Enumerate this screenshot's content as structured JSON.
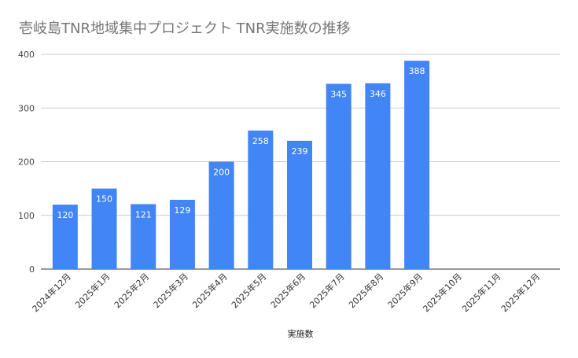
{
  "chart_data": {
    "type": "bar",
    "title": "壱岐島TNR地域集中プロジェクト  TNR実施数の推移",
    "xlabel": "実施数",
    "ylabel": "",
    "categories": [
      "2024年12月",
      "2025年1月",
      "2025年2月",
      "2025年3月",
      "2025年4月",
      "2025年5月",
      "2025年6月",
      "2025年7月",
      "2025年8月",
      "2025年9月",
      "2025年10月",
      "2025年11月",
      "2025年12月"
    ],
    "values": [
      120,
      150,
      121,
      129,
      200,
      258,
      239,
      345,
      346,
      388,
      null,
      null,
      null
    ],
    "ylim": [
      0,
      400
    ],
    "yticks": [
      0,
      100,
      200,
      300,
      400
    ],
    "grid": true,
    "legend": "none",
    "bar_color": "#4285f4"
  }
}
